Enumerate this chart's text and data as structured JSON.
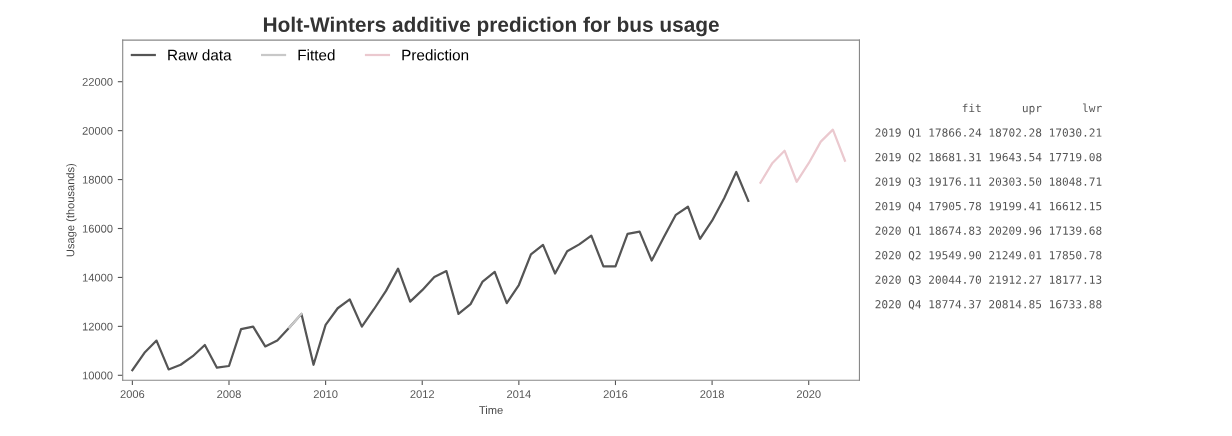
{
  "chart_data": [
    {
      "type": "line",
      "title": "Holt-Winters additive prediction for bus usage",
      "xlabel": "Time",
      "ylabel": "Usage (thousands)",
      "xlim": [
        2005.8,
        2021.05
      ],
      "xticks": [
        2006,
        2008,
        2010,
        2012,
        2014,
        2016,
        2018,
        2020
      ],
      "ylim": [
        9800,
        23700
      ],
      "yticks": [
        10000,
        12000,
        14000,
        16000,
        18000,
        20000,
        22000
      ],
      "grid": false,
      "legend": "top left",
      "line_style": "solid",
      "marker": "none",
      "series": [
        {
          "name": "Raw data",
          "color": "#555555",
          "x": [
            2006,
            2006.25,
            2006.5,
            2006.75,
            2007,
            2007.25,
            2007.5,
            2007.75,
            2008,
            2008.25,
            2008.5,
            2008.75,
            2009,
            2009.25,
            2009.5,
            2009.75,
            2010,
            2010.25,
            2010.5,
            2010.75,
            2011,
            2011.25,
            2011.5,
            2011.75,
            2012,
            2012.25,
            2012.5,
            2012.75,
            2013,
            2013.25,
            2013.5,
            2013.75,
            2014,
            2014.25,
            2014.5,
            2014.75,
            2015,
            2015.25,
            2015.5,
            2015.75,
            2016,
            2016.25,
            2016.5,
            2016.75,
            2017,
            2017.25,
            2017.5,
            2017.75,
            2018,
            2018.25,
            2018.5,
            2018.75
          ],
          "values": [
            10210,
            10920,
            11420,
            10240,
            10430,
            10780,
            11240,
            10310,
            10380,
            11890,
            11990,
            11180,
            11420,
            11950,
            12510,
            10430,
            12060,
            12740,
            13100,
            11990,
            12700,
            13450,
            14360,
            13010,
            13480,
            14020,
            14260,
            12510,
            12910,
            13830,
            14230,
            12950,
            13690,
            14940,
            15330,
            14160,
            15070,
            15350,
            15710,
            14450,
            14450,
            15780,
            15870,
            14690,
            15640,
            16560,
            16890,
            15580,
            16320,
            17240,
            18310,
            17130
          ]
        },
        {
          "name": "Fitted",
          "color": "#c8c8c8",
          "x": [
            2009.25,
            2009.5
          ],
          "values": [
            11950,
            12510
          ]
        },
        {
          "name": "Prediction",
          "color": "#ebc9cf",
          "x": [
            2019,
            2019.25,
            2019.5,
            2019.75,
            2020,
            2020.25,
            2020.5,
            2020.75
          ],
          "values": [
            17870,
            18680,
            19180,
            17910,
            18670,
            19550,
            20040,
            18770
          ]
        }
      ]
    },
    {
      "type": "other",
      "annotations": [
        "             fit      upr      lwr",
        "2019 Q1 17866.24 18702.28 17030.21",
        "2019 Q2 18681.31 19643.54 17719.08",
        "2019 Q3 19176.11 20303.50 18048.71",
        "2019 Q4 17905.78 19199.41 16612.15",
        "2020 Q1 18674.83 20209.96 17139.68",
        "2020 Q2 19549.90 21249.01 17850.78",
        "2020 Q3 20044.70 21912.27 18177.13",
        "2020 Q4 18774.37 20814.85 16733.88"
      ]
    }
  ]
}
